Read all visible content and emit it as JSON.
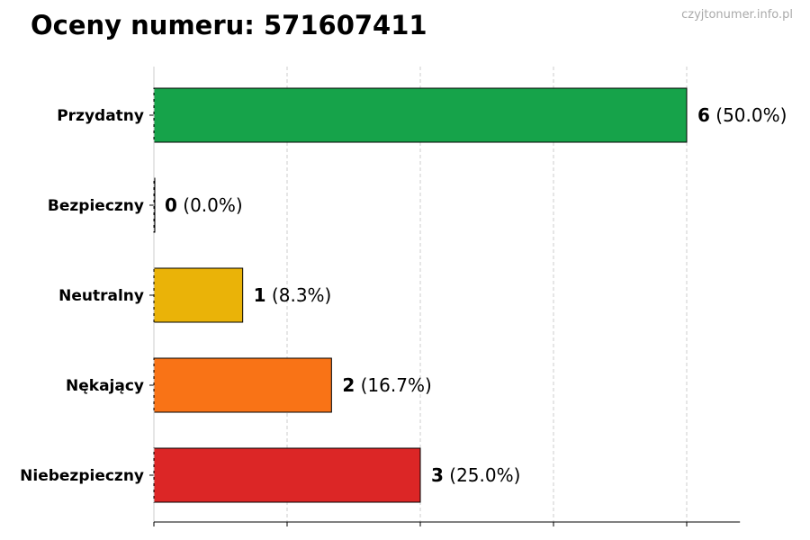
{
  "title": "Oceny numeru: 571607411",
  "watermark": "czyjtonumer.info.pl",
  "chart_data": {
    "type": "bar",
    "orientation": "horizontal",
    "categories": [
      "Przydatny",
      "Bezpieczny",
      "Neutralny",
      "Nękający",
      "Niebezpieczny"
    ],
    "values": [
      6,
      0,
      1,
      2,
      3
    ],
    "value_labels": [
      "(50.0%)",
      "(0.0%)",
      "(8.3%)",
      "(16.7%)",
      "(25.0%)"
    ],
    "colors": [
      "#16a34a",
      "#6b7280",
      "#eab308",
      "#f97316",
      "#dc2626"
    ],
    "xlim": [
      0,
      6.6
    ],
    "x_ticks": [
      0,
      1.5,
      3,
      4.5,
      6
    ],
    "grid": "vertical-dashed"
  }
}
